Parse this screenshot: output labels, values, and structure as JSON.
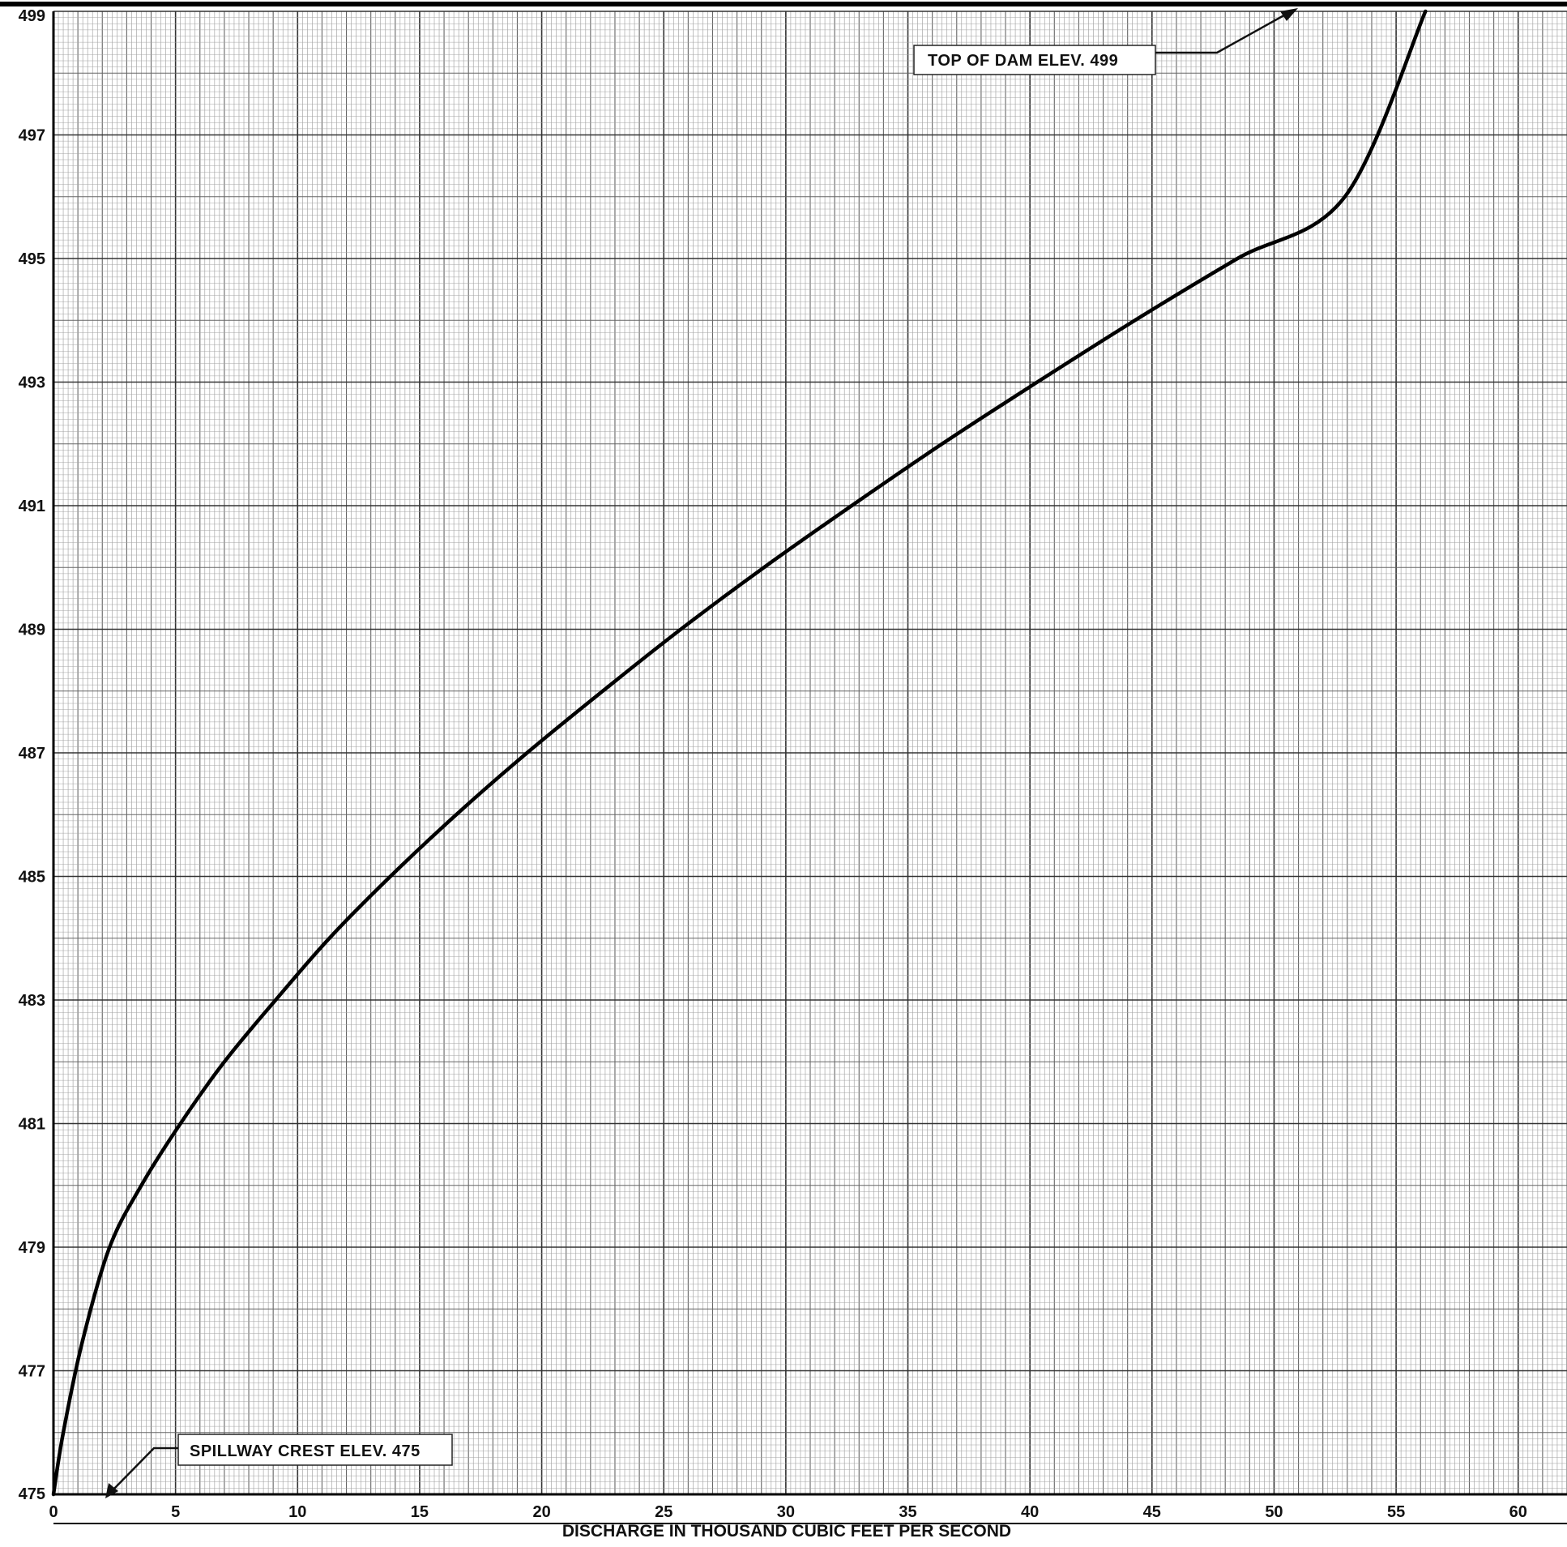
{
  "chart_data": {
    "type": "line",
    "title": "",
    "xlabel": "DISCHARGE IN THOUSAND CUBIC FEET PER SECOND",
    "ylabel": "",
    "xlim": [
      0,
      62
    ],
    "ylim": [
      475,
      499
    ],
    "xticks": [
      "0",
      "5",
      "10",
      "15",
      "20",
      "25",
      "30",
      "35",
      "40",
      "45",
      "50",
      "55",
      "60"
    ],
    "yticks": [
      "475",
      "477",
      "479",
      "481",
      "483",
      "485",
      "487",
      "489",
      "491",
      "493",
      "495",
      "497",
      "499"
    ],
    "grid": true,
    "series": [
      {
        "x": [
          0,
          0.4,
          1.2,
          2.3,
          3.6,
          5.2,
          7.0,
          9.1,
          11.3,
          13.8,
          16.5,
          19.4,
          22.5,
          25.7,
          29.1,
          32.7,
          36.4,
          40.3,
          44.3,
          48.5,
          52.9,
          56.2
        ],
        "y": [
          475,
          476,
          477.5,
          479,
          480,
          481,
          482,
          483,
          484,
          485,
          486,
          487,
          488,
          489,
          490,
          491,
          492,
          493,
          494,
          495,
          496,
          499
        ]
      }
    ],
    "annotations": [
      {
        "text": "TOP OF DAM ELEV. 499",
        "x": 56.2,
        "y": 499
      },
      {
        "text": "SPILLWAY CREST ELEV. 475",
        "x": 0,
        "y": 475
      }
    ]
  }
}
